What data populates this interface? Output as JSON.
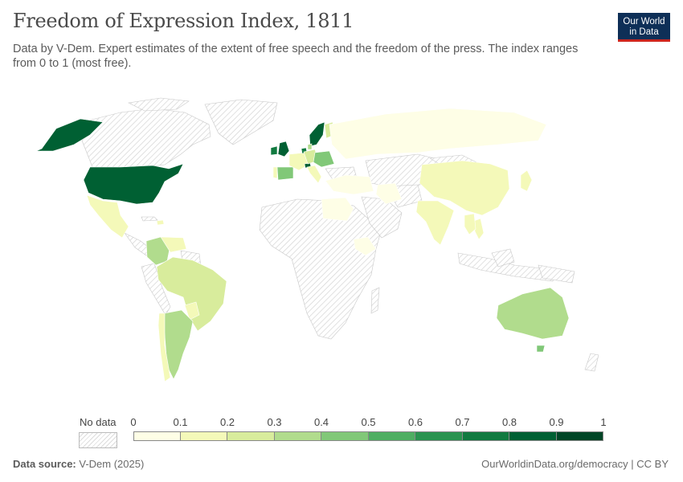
{
  "title": "Freedom of Expression Index, 1811",
  "subtitle": "Data by V-Dem. Expert estimates of the extent of free speech and the freedom of the press. The index ranges from 0 to 1 (most free).",
  "logo": {
    "line1": "Our World",
    "line2": "in Data"
  },
  "legend": {
    "no_data_label": "No data",
    "ticks": [
      "0",
      "0.1",
      "0.2",
      "0.3",
      "0.4",
      "0.5",
      "0.6",
      "0.7",
      "0.8",
      "0.9",
      "1"
    ],
    "colors": [
      "#fefee6",
      "#f4f9b9",
      "#d8ec9c",
      "#b1dc8d",
      "#81c878",
      "#4fae62",
      "#2a9350",
      "#117a40",
      "#006033",
      "#004526"
    ]
  },
  "footer": {
    "source_label": "Data source:",
    "source_value": "V-Dem (2025)",
    "url": "OurWorldinData.org/democracy | CC BY"
  },
  "map": {
    "no_data_color": "#e8e8e8",
    "country_values": {
      "United States": 0.83,
      "Alaska": 0.83,
      "Mexico": 0.15,
      "Haiti": 0.12,
      "Colombia": 0.35,
      "Venezuela": 0.12,
      "Brazil": 0.28,
      "Paraguay": 0.12,
      "Argentina": 0.35,
      "Chile": 0.15,
      "United Kingdom": 0.82,
      "Ireland": 0.75,
      "Portugal": 0.15,
      "Spain": 0.45,
      "France": 0.15,
      "Netherlands": 0.7,
      "Switzerland": 0.85,
      "Sweden": 0.85,
      "Finland": 0.25,
      "Denmark": 0.3,
      "Germany": 0.2,
      "Austria-Hungary": 0.4,
      "Italy": 0.1,
      "Russia": 0.06,
      "Ottoman Empire": 0.05,
      "Egypt": 0.05,
      "Persia": 0.05,
      "Ethiopia": 0.08,
      "India": 0.18,
      "China": 0.15,
      "Japan": 0.18,
      "Thailand": 0.12,
      "Burma": 0.1,
      "Australia": 0.32,
      "Tasmania": 0.45
    }
  }
}
